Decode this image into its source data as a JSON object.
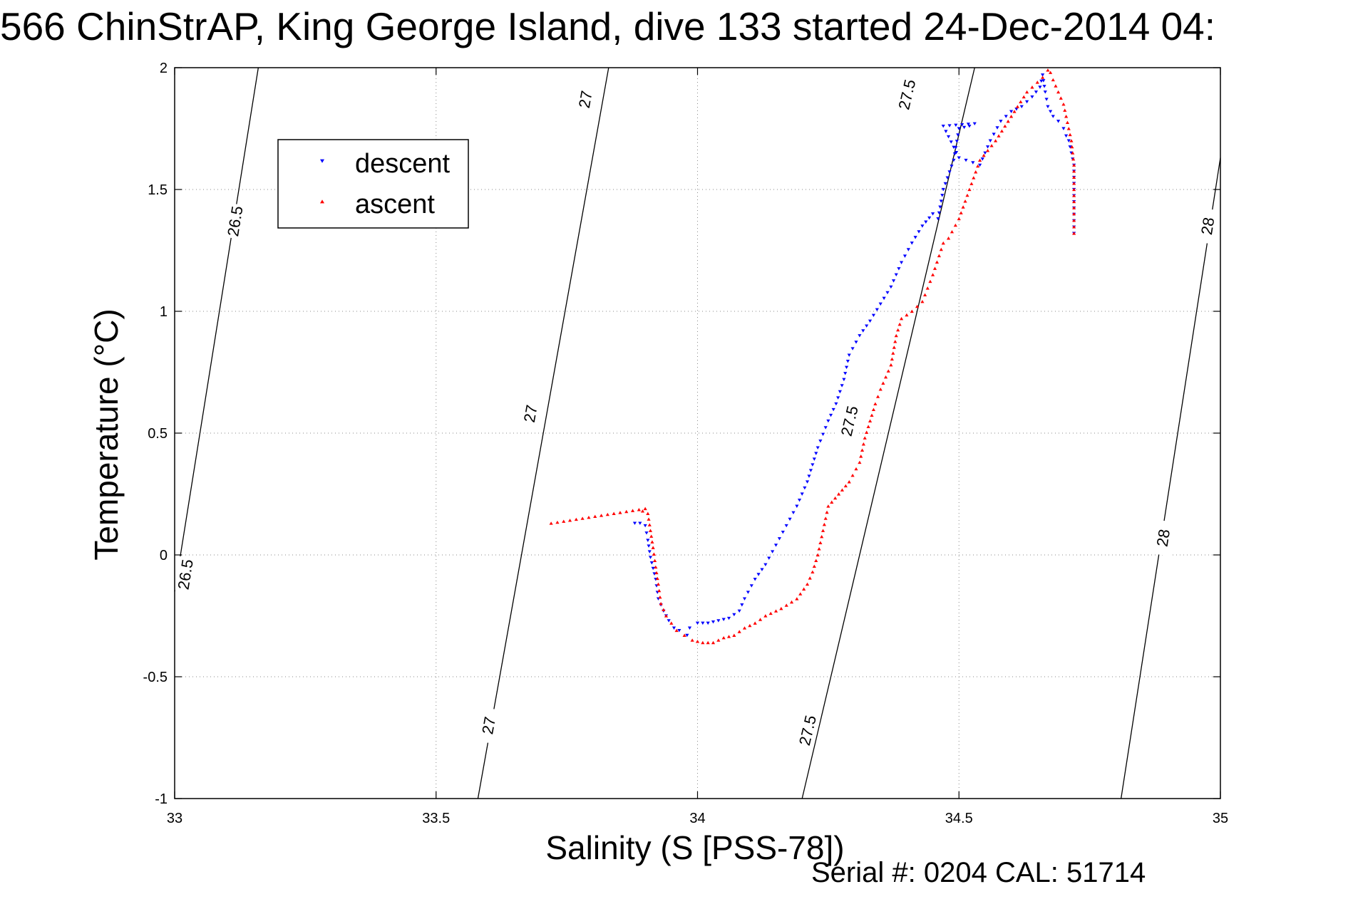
{
  "title": "566 ChinStrAP, King George Island, dive 133 started 24-Dec-2014 04:",
  "footer": "Serial #: 0204  CAL: 51714",
  "chart_data": {
    "type": "scatter",
    "xlabel": "Salinity (S [PSS-78])",
    "ylabel": "Temperature (°C)",
    "xlim": [
      33,
      35
    ],
    "ylim": [
      -1,
      2
    ],
    "xticks": [
      33,
      33.5,
      34,
      34.5,
      35
    ],
    "xtick_labels": [
      "33",
      "33.5",
      "34",
      "34.5",
      "35"
    ],
    "yticks": [
      -1,
      -0.5,
      0,
      0.5,
      1,
      1.5,
      2
    ],
    "ytick_labels": [
      "-1",
      "-0.5",
      "0",
      "0.5",
      "1",
      "1.5",
      "2"
    ],
    "grid": true,
    "grid_style": "dotted",
    "legend": {
      "position": "top-left"
    },
    "colors": {
      "descent": "#0000ff",
      "ascent": "#ff0000",
      "contour": "#000000",
      "grid": "#888888"
    },
    "density_contours": [
      {
        "label": "26.5",
        "line": [
          [
            33.0,
            -0.15
          ],
          [
            33.16,
            2.0
          ]
        ],
        "labels_at": [
          [
            33.02,
            -0.08
          ],
          [
            33.115,
            1.37
          ]
        ]
      },
      {
        "label": "27",
        "line": [
          [
            33.58,
            -1.0
          ],
          [
            33.83,
            2.0
          ]
        ],
        "labels_at": [
          [
            33.6,
            -0.7
          ],
          [
            33.68,
            0.58
          ],
          [
            33.785,
            1.87
          ]
        ]
      },
      {
        "label": "27.5",
        "line": [
          [
            34.2,
            -1.0
          ],
          [
            34.53,
            2.0
          ]
        ],
        "labels_at": [
          [
            34.21,
            -0.72
          ],
          [
            34.29,
            0.55
          ],
          [
            34.4,
            1.89
          ]
        ]
      },
      {
        "label": "28",
        "line": [
          [
            34.81,
            -1.0
          ],
          [
            35.0,
            1.63
          ]
        ],
        "labels_at": [
          [
            34.89,
            0.07
          ],
          [
            34.975,
            1.35
          ]
        ]
      }
    ],
    "series": [
      {
        "name": "descent",
        "marker": "triangle-down",
        "x": [
          33.88,
          33.89,
          33.9,
          33.905,
          33.91,
          33.92,
          33.925,
          33.935,
          33.945,
          33.955,
          33.965,
          33.98,
          33.985,
          34.0,
          34.02,
          34.04,
          34.06,
          34.08,
          34.09,
          34.11,
          34.13,
          34.15,
          34.17,
          34.19,
          34.21,
          34.23,
          34.25,
          34.265,
          34.28,
          34.29,
          34.31,
          34.33,
          34.35,
          34.37,
          34.39,
          34.41,
          34.43,
          34.45,
          34.46,
          34.47,
          34.49,
          34.5,
          34.52,
          34.53,
          34.47,
          34.5,
          34.54,
          34.56,
          34.58,
          34.6,
          34.62,
          34.64,
          34.655,
          34.66,
          34.665,
          34.67,
          34.68,
          34.69,
          34.7,
          34.705,
          34.71,
          34.715,
          34.72,
          34.72,
          34.72,
          34.72
        ],
        "y": [
          0.13,
          0.13,
          0.12,
          0.06,
          -0.01,
          -0.1,
          -0.18,
          -0.23,
          -0.27,
          -0.3,
          -0.31,
          -0.33,
          -0.3,
          -0.28,
          -0.28,
          -0.27,
          -0.26,
          -0.23,
          -0.18,
          -0.1,
          -0.04,
          0.04,
          0.12,
          0.2,
          0.3,
          0.44,
          0.55,
          0.62,
          0.72,
          0.82,
          0.9,
          0.96,
          1.03,
          1.1,
          1.2,
          1.28,
          1.35,
          1.4,
          1.38,
          1.5,
          1.62,
          1.75,
          1.76,
          1.77,
          1.76,
          1.63,
          1.6,
          1.7,
          1.78,
          1.82,
          1.84,
          1.88,
          1.92,
          1.97,
          1.9,
          1.84,
          1.8,
          1.78,
          1.75,
          1.72,
          1.7,
          1.65,
          1.6,
          1.55,
          1.45,
          1.32
        ]
      },
      {
        "name": "ascent",
        "marker": "triangle-up",
        "x": [
          33.72,
          33.9,
          33.895,
          33.905,
          33.91,
          33.915,
          33.92,
          33.925,
          33.93,
          33.94,
          33.95,
          33.96,
          33.975,
          33.99,
          34.01,
          34.03,
          34.05,
          34.07,
          34.09,
          34.11,
          34.13,
          34.16,
          34.19,
          34.21,
          34.22,
          34.23,
          34.24,
          34.25,
          34.27,
          34.29,
          34.31,
          34.32,
          34.33,
          34.34,
          34.35,
          34.37,
          34.38,
          34.39,
          34.41,
          34.43,
          34.45,
          34.47,
          34.48,
          34.5,
          34.52,
          34.54,
          34.57,
          34.6,
          34.63,
          34.66,
          34.67,
          34.675,
          34.68,
          34.69,
          34.7,
          34.705,
          34.71,
          34.715,
          34.72,
          34.72,
          34.72,
          34.72
        ],
        "y": [
          0.13,
          0.19,
          0.18,
          0.17,
          0.1,
          0.03,
          -0.05,
          -0.12,
          -0.2,
          -0.25,
          -0.28,
          -0.31,
          -0.33,
          -0.35,
          -0.36,
          -0.36,
          -0.34,
          -0.33,
          -0.3,
          -0.28,
          -0.25,
          -0.22,
          -0.18,
          -0.12,
          -0.07,
          0.0,
          0.1,
          0.2,
          0.25,
          0.3,
          0.38,
          0.48,
          0.55,
          0.62,
          0.68,
          0.78,
          0.9,
          0.97,
          1.0,
          1.04,
          1.15,
          1.28,
          1.3,
          1.38,
          1.5,
          1.62,
          1.7,
          1.8,
          1.9,
          1.96,
          1.99,
          1.98,
          1.95,
          1.9,
          1.85,
          1.8,
          1.75,
          1.7,
          1.6,
          1.5,
          1.4,
          1.32
        ]
      }
    ]
  }
}
